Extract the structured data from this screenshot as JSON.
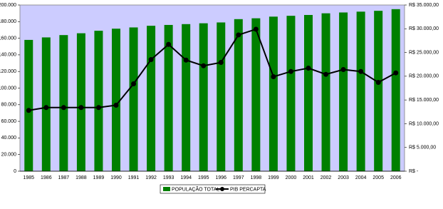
{
  "chart_data": {
    "type": "bar-line",
    "categories": [
      "1985",
      "1986",
      "1987",
      "1988",
      "1989",
      "1990",
      "1991",
      "1992",
      "1993",
      "1994",
      "1995",
      "1996",
      "1997",
      "1998",
      "1999",
      "2000",
      "2001",
      "2002",
      "2003",
      "2004",
      "2005",
      "2006"
    ],
    "series": [
      {
        "name": "POPULAÇÃO TOTAL",
        "type": "bar",
        "color": "#008000",
        "values": [
          158000,
          161000,
          163800,
          166000,
          169000,
          171500,
          173000,
          175000,
          176000,
          177000,
          178000,
          179000,
          183000,
          184000,
          186000,
          187000,
          188000,
          190000,
          191000,
          192000,
          193000,
          195000
        ]
      },
      {
        "name": "PIB PERCAPTA",
        "type": "line",
        "color": "#000000",
        "axis": "y2",
        "values": [
          12800,
          13400,
          13400,
          13400,
          13400,
          13900,
          18400,
          23500,
          26700,
          23400,
          22200,
          22900,
          28700,
          29900,
          19900,
          21000,
          21700,
          20400,
          21400,
          21000,
          18700,
          20700
        ]
      }
    ],
    "ylim": [
      0,
      200000
    ],
    "yticks": [
      0,
      {
        "value": 20000,
        "label": "20.000"
      },
      {
        "value": 40000,
        "label": "40.000"
      },
      {
        "value": 60000,
        "label": "60.000"
      },
      {
        "value": 80000,
        "label": "80.000"
      },
      {
        "value": 100000,
        "label": "100.000"
      },
      {
        "value": 120000,
        "label": "120.000"
      },
      {
        "value": 140000,
        "label": "140.000"
      },
      {
        "value": 160000,
        "label": "160.000"
      },
      {
        "value": 180000,
        "label": "180.000"
      },
      {
        "value": 200000,
        "label": "200.000"
      }
    ],
    "y2lim": [
      0,
      35000
    ],
    "y2ticks": [
      {
        "value": 0,
        "label": "R$ -"
      },
      {
        "value": 5000,
        "label": "R$ 5.000,00"
      },
      {
        "value": 10000,
        "label": "R$ 10.000,00"
      },
      {
        "value": 15000,
        "label": "R$ 15.000,00"
      },
      {
        "value": 20000,
        "label": "R$ 20.000,00"
      },
      {
        "value": 25000,
        "label": "R$ 25.000,00"
      },
      {
        "value": 30000,
        "label": "R$ 30.000,00"
      },
      {
        "value": 35000,
        "label": "R$ 35.000,00"
      }
    ],
    "plot_background": "#ccccff",
    "legend": "bottom"
  }
}
